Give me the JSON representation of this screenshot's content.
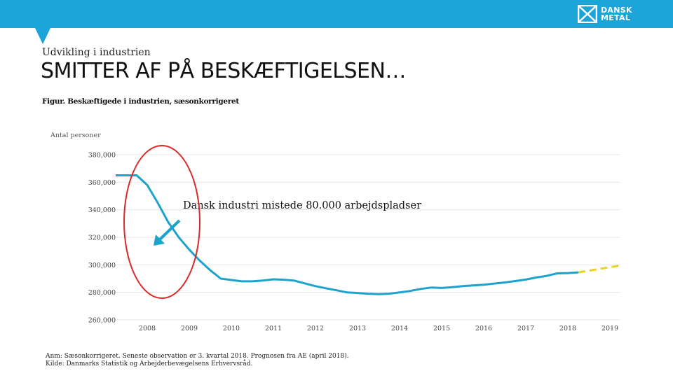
{
  "logo": {
    "line1": "DANSK",
    "line2": "METAL"
  },
  "header": {
    "kicker": "Udvikling i industrien",
    "headline": "SMITTER AF PÅ BESKÆFTIGELSEN…",
    "figure_caption": "Figur. Beskæftigede i industrien, sæsonkorrigeret"
  },
  "chart_data": {
    "type": "line",
    "ylabel": "Antal personer",
    "ylim": [
      260000,
      380000
    ],
    "yticks": [
      380000,
      360000,
      340000,
      320000,
      300000,
      280000,
      260000
    ],
    "ytick_labels": [
      "380,000",
      "360,000",
      "340,000",
      "320,000",
      "300,000",
      "280,000",
      "260,000"
    ],
    "xlim": [
      2007.0,
      2019.25
    ],
    "xticks": [
      2008,
      2009,
      2010,
      2011,
      2012,
      2013,
      2014,
      2015,
      2016,
      2017,
      2018,
      2019
    ],
    "xtick_labels": [
      "2008",
      "2009",
      "2010",
      "2011",
      "2012",
      "2013",
      "2014",
      "2015",
      "2016",
      "2017",
      "2018",
      "2019"
    ],
    "grid": true,
    "series": [
      {
        "style": "solid",
        "color": "#1ba3cc",
        "points": [
          [
            2007.25,
            365000
          ],
          [
            2007.5,
            365000
          ],
          [
            2007.75,
            365000
          ],
          [
            2008.0,
            358000
          ],
          [
            2008.25,
            345000
          ],
          [
            2008.5,
            331000
          ],
          [
            2008.75,
            320000
          ],
          [
            2009.0,
            311000
          ],
          [
            2009.25,
            303000
          ],
          [
            2009.5,
            296000
          ],
          [
            2009.75,
            290000
          ],
          [
            2010.0,
            289000
          ],
          [
            2010.25,
            288000
          ],
          [
            2010.5,
            288000
          ],
          [
            2010.75,
            288600
          ],
          [
            2011.0,
            289500
          ],
          [
            2011.25,
            289200
          ],
          [
            2011.5,
            288500
          ],
          [
            2011.75,
            286500
          ],
          [
            2012.0,
            284500
          ],
          [
            2012.25,
            283000
          ],
          [
            2012.5,
            281500
          ],
          [
            2012.75,
            280000
          ],
          [
            2013.0,
            279500
          ],
          [
            2013.25,
            279000
          ],
          [
            2013.5,
            278700
          ],
          [
            2013.75,
            279000
          ],
          [
            2014.0,
            280000
          ],
          [
            2014.25,
            281000
          ],
          [
            2014.5,
            282500
          ],
          [
            2014.75,
            283500
          ],
          [
            2015.0,
            283200
          ],
          [
            2015.25,
            283800
          ],
          [
            2015.5,
            284500
          ],
          [
            2015.75,
            285000
          ],
          [
            2016.0,
            285600
          ],
          [
            2016.25,
            286400
          ],
          [
            2016.5,
            287200
          ],
          [
            2016.75,
            288200
          ],
          [
            2017.0,
            289300
          ],
          [
            2017.25,
            290800
          ],
          [
            2017.5,
            292000
          ],
          [
            2017.75,
            293800
          ],
          [
            2018.0,
            294000
          ],
          [
            2018.25,
            294500
          ]
        ]
      },
      {
        "style": "dashed",
        "color": "#e8d21f",
        "points": [
          [
            2018.25,
            294500
          ],
          [
            2019.25,
            299500
          ]
        ]
      }
    ],
    "annotations": [
      {
        "text": "Dansk industri mistede 80.000 arbejdspladser",
        "x": 2009.0,
        "y": 343000
      }
    ]
  },
  "footnote": {
    "line1": "Anm: Sæsonkorrigeret. Seneste observation er 3. kvartal 2018. Prognosen fra AE (april 2018).",
    "line2": "Kilde: Danmarks Statistik og Arbejderbevægelsens Erhvervsråd."
  }
}
